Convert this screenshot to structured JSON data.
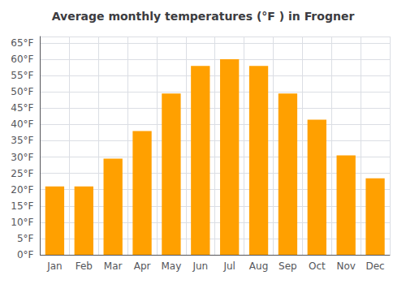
{
  "chart_data": {
    "type": "bar",
    "title": "Average monthly temperatures (°F ) in Frogner",
    "categories": [
      "Jan",
      "Feb",
      "Mar",
      "Apr",
      "May",
      "Jun",
      "Jul",
      "Aug",
      "Sep",
      "Oct",
      "Nov",
      "Dec"
    ],
    "values": [
      21,
      21,
      29.5,
      38,
      49.5,
      58,
      60,
      58,
      49.5,
      41.5,
      30.5,
      23.5
    ],
    "color": "#FFA000",
    "ylim": [
      0,
      67
    ],
    "yticks": [
      {
        "value": 0,
        "label": "0°F"
      },
      {
        "value": 5,
        "label": "5°F"
      },
      {
        "value": 10,
        "label": "10°F"
      },
      {
        "value": 15,
        "label": "15°F"
      },
      {
        "value": 20,
        "label": "20°F"
      },
      {
        "value": 25,
        "label": "25°F"
      },
      {
        "value": 30,
        "label": "30°F"
      },
      {
        "value": 35,
        "label": "35°F"
      },
      {
        "value": 40,
        "label": "40°F"
      },
      {
        "value": 45,
        "label": "45°F"
      },
      {
        "value": 50,
        "label": "50°F"
      },
      {
        "value": 55,
        "label": "55°F"
      },
      {
        "value": 60,
        "label": "60°F"
      },
      {
        "value": 65,
        "label": "65°F"
      }
    ],
    "grid": true
  }
}
